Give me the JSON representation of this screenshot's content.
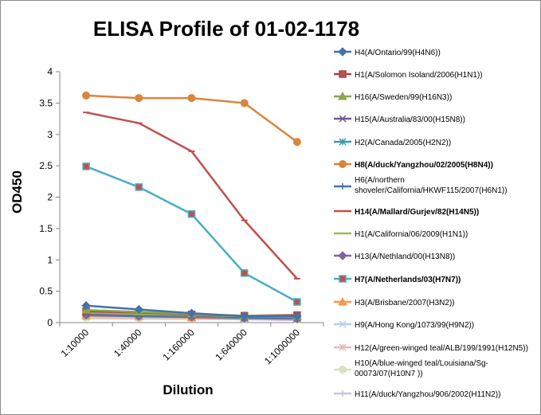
{
  "chart_data": {
    "type": "line",
    "title": "ELISA Profile of 01-02-1178",
    "xlabel": "Dilution",
    "ylabel": "OD450",
    "ylim": [
      0,
      4
    ],
    "yticks": [
      "0",
      "0.5",
      "1",
      "1.5",
      "2",
      "2.5",
      "3",
      "3.5",
      "4"
    ],
    "categories": [
      "1:10000",
      "1:40000",
      "1:160000",
      "1:640000",
      "1:1000000"
    ],
    "grid": false,
    "legend_position": "right",
    "series": [
      {
        "name": "H4(A/Ontario/99(H4N6))",
        "color": "#4572A7",
        "marker": "diamond",
        "bold": false,
        "values": [
          0.27,
          0.21,
          0.15,
          0.1,
          0.1
        ]
      },
      {
        "name": "H1(A/Solomon Isoland/2006(H1N1))",
        "color": "#AA4643",
        "marker": "square",
        "bold": false,
        "values": [
          0.18,
          0.16,
          0.13,
          0.11,
          0.12
        ]
      },
      {
        "name": "H16(A/Sweden/99(H16N3))",
        "color": "#89A54E",
        "marker": "triangle",
        "bold": false,
        "values": [
          0.2,
          0.17,
          0.14,
          0.11,
          0.1
        ]
      },
      {
        "name": "H15(A/Australia/83/00(H15N8))",
        "color": "#71588F",
        "marker": "x",
        "bold": false,
        "values": [
          0.15,
          0.13,
          0.11,
          0.09,
          0.08
        ]
      },
      {
        "name": "H2(A/Canada/2005(H2N2))",
        "color": "#4198AF",
        "marker": "asterisk",
        "bold": false,
        "values": [
          0.14,
          0.12,
          0.1,
          0.08,
          0.07
        ]
      },
      {
        "name": "H8(A/duck/Yangzhou/02/2005(H8N4))",
        "color": "#DB843D",
        "marker": "circle",
        "bold": true,
        "values": [
          3.62,
          3.58,
          3.58,
          3.5,
          2.88
        ]
      },
      {
        "name": "H6(A/northern shoveler/California/HKWF115/2007(H6N1))",
        "color": "#4572A7",
        "marker": "plus",
        "bold": false,
        "values": [
          0.13,
          0.11,
          0.1,
          0.08,
          0.07
        ]
      },
      {
        "name": "H14(A/Mallard/Gurjev/82(H14N5))",
        "color": "#C0504D",
        "marker": "dash",
        "bold": true,
        "values": [
          3.35,
          3.18,
          2.73,
          1.63,
          0.7
        ]
      },
      {
        "name": "H1(A/California/06/2009(H1N1))",
        "color": "#9BBB59",
        "marker": "dash",
        "bold": false,
        "values": [
          0.16,
          0.14,
          0.12,
          0.1,
          0.09
        ]
      },
      {
        "name": "H13(A/Nethland/00(H13N8))",
        "color": "#8064A2",
        "marker": "diamond",
        "bold": false,
        "values": [
          0.12,
          0.1,
          0.09,
          0.07,
          0.06
        ]
      },
      {
        "name": "H7(A/Netherlands/03(H7N7))",
        "color": "#4BACC6",
        "marker": "square",
        "bold": true,
        "values": [
          2.49,
          2.16,
          1.73,
          0.79,
          0.33
        ]
      },
      {
        "name": "H3(A/Brisbane/2007(H3N2))",
        "color": "#F79646",
        "marker": "triangle",
        "bold": false,
        "values": [
          0.11,
          0.1,
          0.08,
          0.07,
          0.06
        ]
      },
      {
        "name": "H9(A/Hong Kong/1073/99(H9N2))",
        "color": "#B9CDE5",
        "marker": "x",
        "bold": false,
        "values": [
          0.1,
          0.09,
          0.08,
          0.06,
          0.05
        ]
      },
      {
        "name": "H12(A/green-winged teal/ALB/199/1991(H12N5))",
        "color": "#E6B9B8",
        "marker": "asterisk",
        "bold": false,
        "values": [
          0.09,
          0.08,
          0.07,
          0.06,
          0.05
        ]
      },
      {
        "name": "H10(A/blue-winged teal/Louisiana/Sg-00073/07(H10N7 ))",
        "color": "#D7E4BD",
        "marker": "circle",
        "bold": false,
        "values": [
          0.08,
          0.07,
          0.07,
          0.06,
          0.05
        ]
      },
      {
        "name": "H11(A/duck/Yangzhou/906/2002(H11N2))",
        "color": "#CCC1DA",
        "marker": "plus",
        "bold": false,
        "values": [
          0.07,
          0.06,
          0.06,
          0.05,
          0.04
        ]
      }
    ]
  }
}
